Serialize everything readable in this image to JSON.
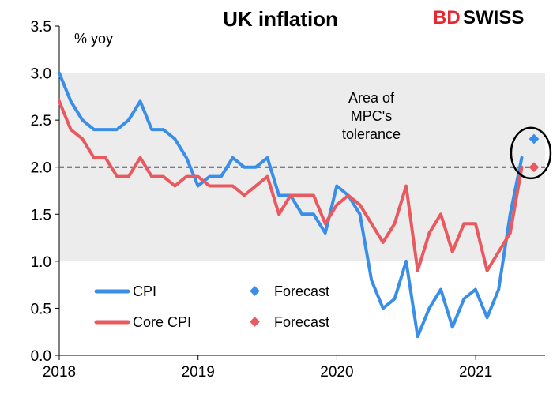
{
  "colors": {
    "cpi": "#3a8ee8",
    "core_cpi": "#e85a5f",
    "tolerance_band": "#ececec",
    "target_line": "#4d5a6e",
    "logo_red": "#e8262d"
  },
  "logo": {
    "part1": "BD",
    "part2": "SWISS"
  },
  "chart_data": {
    "type": "line",
    "title": "UK inflation",
    "ylabel": "% yoy",
    "xlabel": "",
    "ylim": [
      0.0,
      3.5
    ],
    "xlim": [
      2018.0,
      2021.5
    ],
    "x_ticks": [
      2018,
      2019,
      2020,
      2021
    ],
    "x_tick_labels": [
      "2018",
      "2019",
      "2020",
      "2021"
    ],
    "y_ticks": [
      0.0,
      0.5,
      1.0,
      1.5,
      2.0,
      2.5,
      3.0,
      3.5
    ],
    "y_tick_labels": [
      "0.0",
      "0.5",
      "1.0",
      "1.5",
      "2.0",
      "2.5",
      "3.0",
      "3.5"
    ],
    "tolerance_band": {
      "low": 1.0,
      "high": 3.0,
      "label_lines": [
        "Area of",
        "MPC's",
        "tolerance"
      ]
    },
    "target_line": 2.0,
    "series": [
      {
        "name": "CPI",
        "key": "cpi",
        "x_start": 2018.0,
        "step": 0.0833,
        "values": [
          3.0,
          2.7,
          2.5,
          2.4,
          2.4,
          2.4,
          2.5,
          2.7,
          2.4,
          2.4,
          2.3,
          2.1,
          1.8,
          1.9,
          1.9,
          2.1,
          2.0,
          2.0,
          2.1,
          1.7,
          1.7,
          1.5,
          1.5,
          1.3,
          1.8,
          1.7,
          1.5,
          0.8,
          0.5,
          0.6,
          1.0,
          0.2,
          0.5,
          0.7,
          0.3,
          0.6,
          0.7,
          0.4,
          0.7,
          1.5,
          2.1
        ]
      },
      {
        "name": "Core CPI",
        "key": "core_cpi",
        "x_start": 2018.0,
        "step": 0.0833,
        "values": [
          2.7,
          2.4,
          2.3,
          2.1,
          2.1,
          1.9,
          1.9,
          2.1,
          1.9,
          1.9,
          1.8,
          1.9,
          1.9,
          1.8,
          1.8,
          1.8,
          1.7,
          1.8,
          1.9,
          1.5,
          1.7,
          1.7,
          1.7,
          1.4,
          1.6,
          1.7,
          1.6,
          1.4,
          1.2,
          1.4,
          1.8,
          0.9,
          1.3,
          1.5,
          1.1,
          1.4,
          1.4,
          0.9,
          1.1,
          1.3,
          2.0
        ]
      }
    ],
    "forecasts": [
      {
        "name": "Forecast",
        "series": "cpi",
        "x": 2021.42,
        "y": 2.3
      },
      {
        "name": "Forecast",
        "series": "core_cpi",
        "x": 2021.42,
        "y": 2.0
      }
    ],
    "legend": [
      {
        "label": "CPI",
        "type": "line",
        "series": "cpi"
      },
      {
        "label": "Forecast",
        "type": "marker",
        "series": "cpi"
      },
      {
        "label": "Core CPI",
        "type": "line",
        "series": "core_cpi"
      },
      {
        "label": "Forecast",
        "type": "marker",
        "series": "core_cpi"
      }
    ],
    "legend_position": "bottom-left",
    "annotation": "circle around forecast markers"
  }
}
